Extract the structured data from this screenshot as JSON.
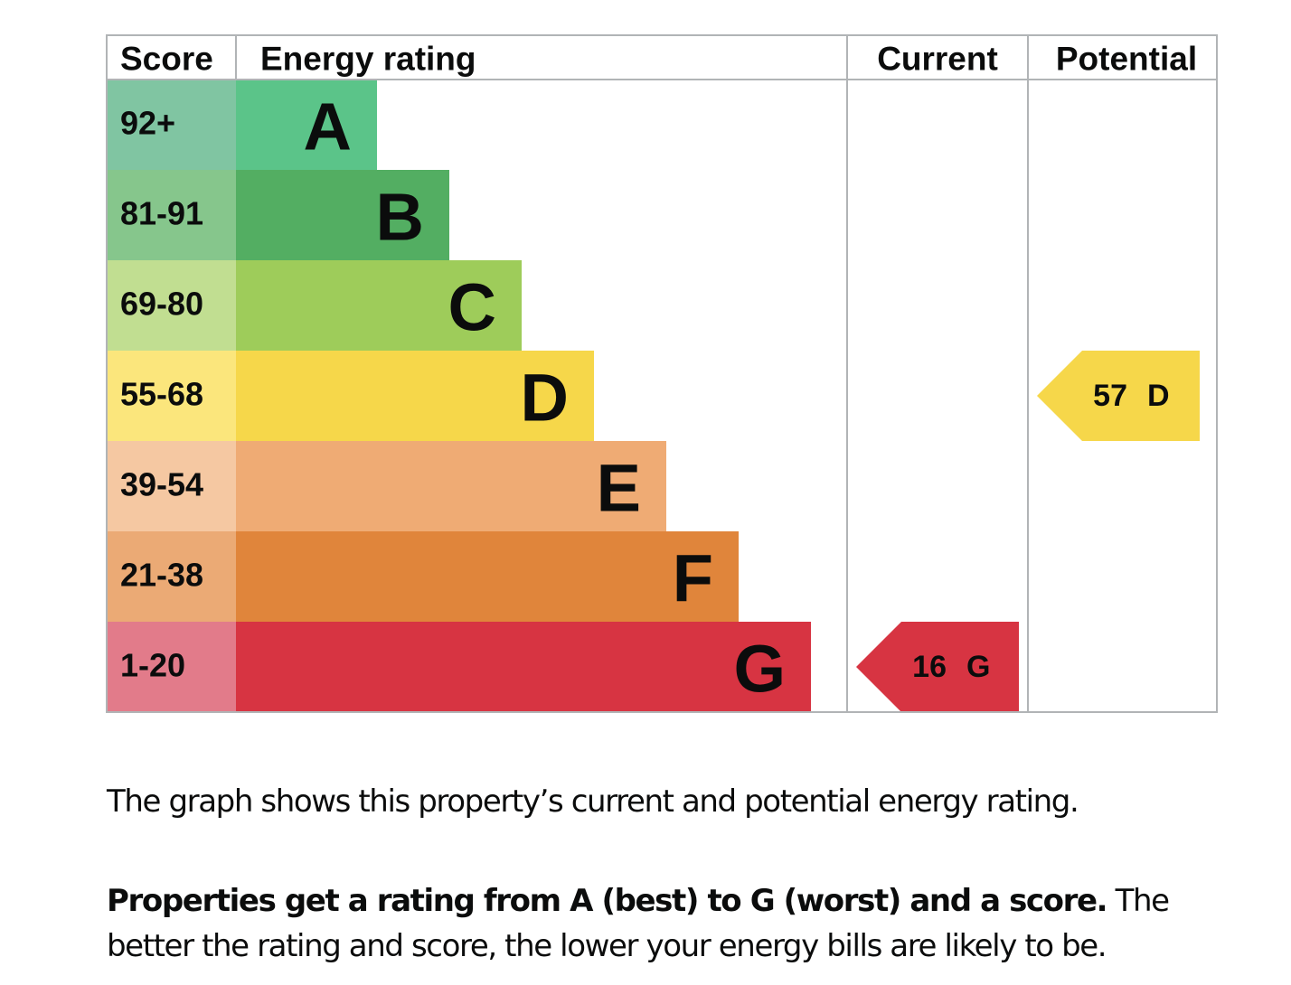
{
  "table": {
    "headers": [
      "Score",
      "Energy rating",
      "Current",
      "Potential"
    ],
    "bands": [
      {
        "score": "92+",
        "rating": "A",
        "bar_color": "#5bc489",
        "score_color": "#80c5a2"
      },
      {
        "score": "81-91",
        "rating": "B",
        "bar_color": "#53ae62",
        "score_color": "#86c68c"
      },
      {
        "score": "69-80",
        "rating": "C",
        "bar_color": "#9ecc5a",
        "score_color": "#c1de91"
      },
      {
        "score": "55-68",
        "rating": "D",
        "bar_color": "#f6d74a",
        "score_color": "#fbe67c"
      },
      {
        "score": "39-54",
        "rating": "E",
        "bar_color": "#efab74",
        "score_color": "#f5c8a2"
      },
      {
        "score": "21-38",
        "rating": "F",
        "bar_color": "#e0853b",
        "score_color": "#ebaa75"
      },
      {
        "score": "1-20",
        "rating": "G",
        "bar_color": "#d73442",
        "score_color": "#e27b8a"
      }
    ],
    "current": {
      "score": 16,
      "rating": "G"
    },
    "potential": {
      "score": 57,
      "rating": "D"
    }
  },
  "text": {
    "summary": "The graph shows this property’s current and potential energy rating.",
    "explanation": {
      "bold": "Properties get a rating from A (best) to G (worst) and a score.",
      "rest": "The better the rating and score, the lower your energy bills are likely to be."
    }
  }
}
